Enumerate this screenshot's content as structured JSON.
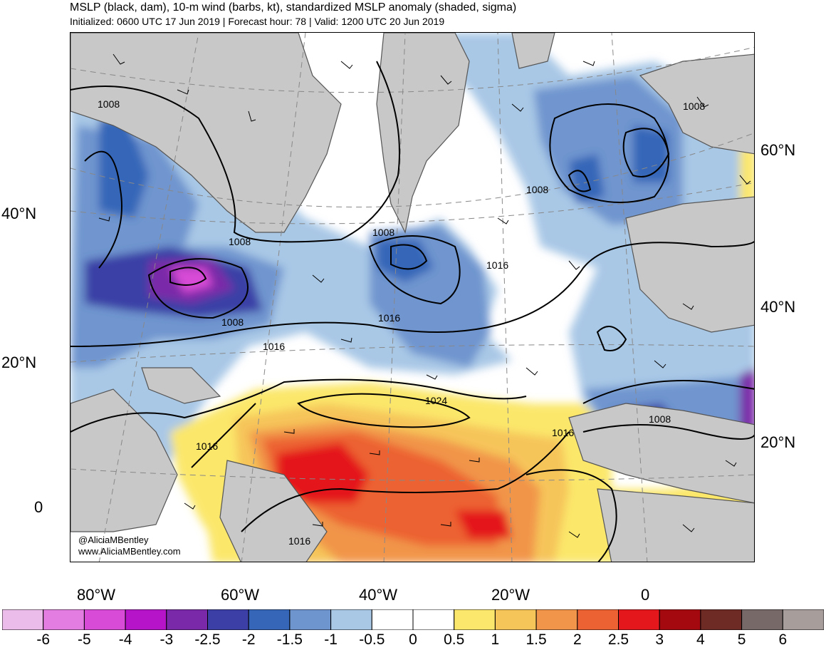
{
  "header": {
    "title": "MSLP (black, dam), 10-m wind (barbs, kt), standardized MSLP anomaly (shaded, sigma)",
    "subtitle": "Initialized: 0600 UTC 17 Jun 2019 | Forecast hour: 78 | Valid: 1200 UTC 20 Jun 2019"
  },
  "map": {
    "region": "North Atlantic",
    "lat_labels_left": [
      "40°N",
      "20°N",
      "0"
    ],
    "lat_labels_right": [
      "60°N",
      "40°N",
      "20°N"
    ],
    "lon_labels": [
      "80°W",
      "60°W",
      "40°W",
      "20°W",
      "0"
    ],
    "isobar_labels": [
      "1008",
      "1008",
      "1008",
      "1008",
      "1008",
      "1008",
      "1016",
      "1016",
      "1016",
      "1016",
      "1016",
      "1016",
      "1024"
    ],
    "credits": [
      "@AliciaMBentley",
      "www.AliciaMBentley.com"
    ]
  },
  "colorbar": {
    "labels": [
      "-6",
      "-5",
      "-4",
      "-3",
      "-2.5",
      "-2",
      "-1.5",
      "-1",
      "-0.5",
      "0",
      "0.5",
      "1",
      "1.5",
      "2",
      "2.5",
      "3",
      "4",
      "5",
      "6"
    ],
    "colors": [
      "#ebbbe9",
      "#e37de1",
      "#d84bd6",
      "#b514c8",
      "#7a2aa8",
      "#3b3fa6",
      "#3566b8",
      "#6f95cf",
      "#a9c8e6",
      "#ffffff",
      "#ffffff",
      "#fbe76b",
      "#f6c55a",
      "#f1954a",
      "#ec6233",
      "#e4181c",
      "#a3090e",
      "#6e2a25",
      "#766968",
      "#a79d9b"
    ]
  },
  "colors": {
    "land": "#c8c8c8",
    "coast": "#555555",
    "isobar": "#000000",
    "grid": "#888888"
  }
}
